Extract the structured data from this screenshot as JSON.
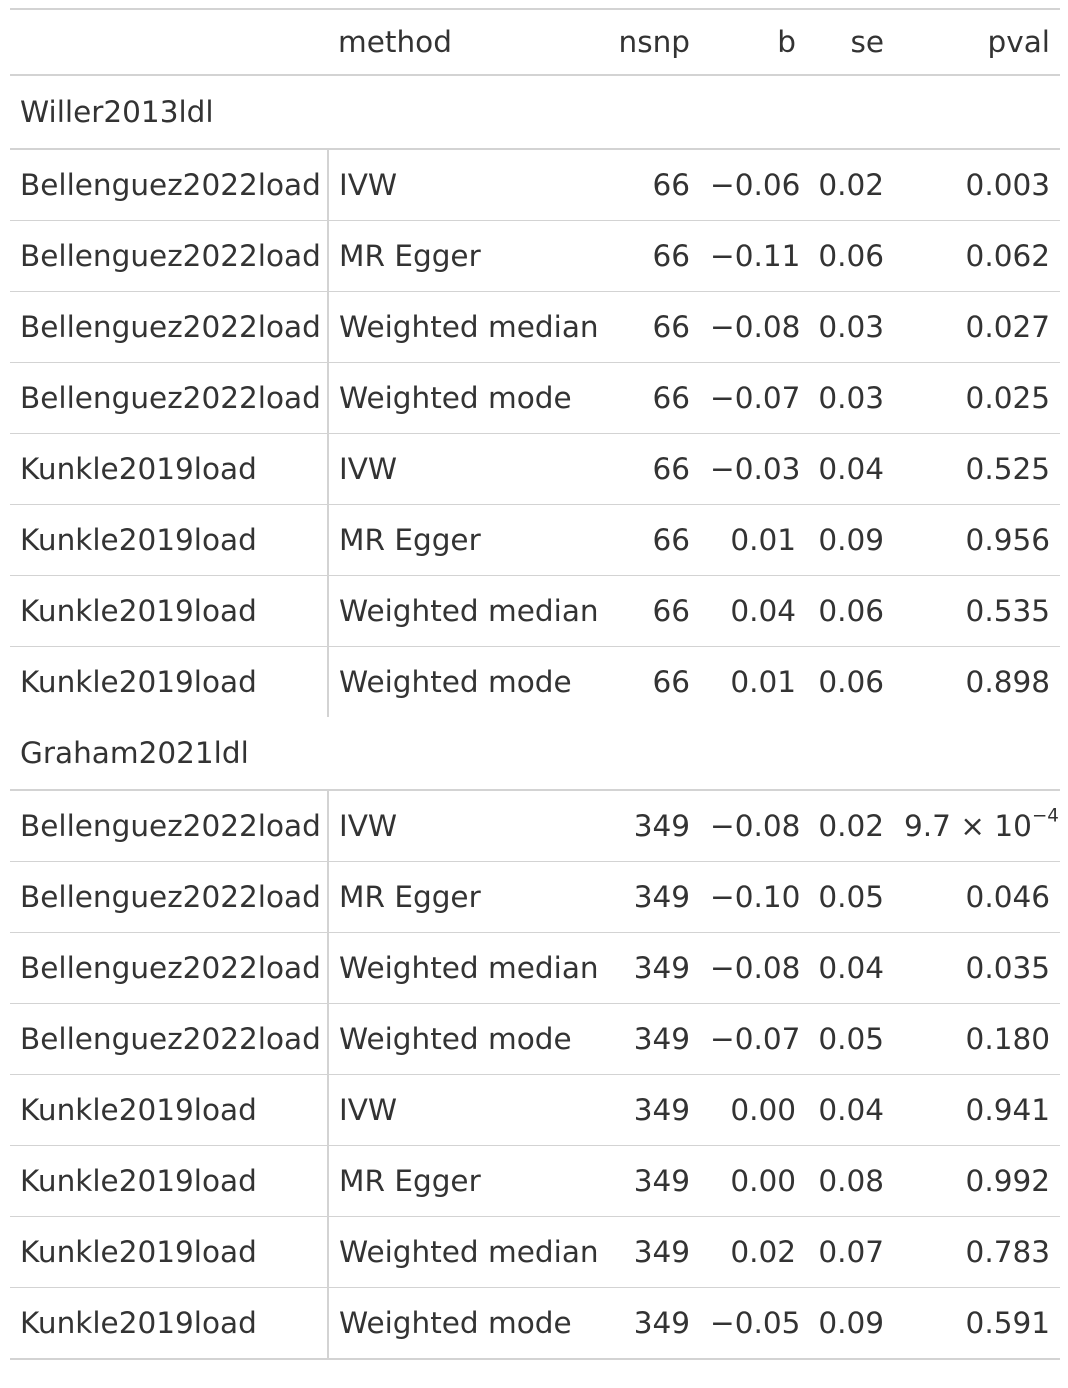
{
  "columns": [
    "",
    "method",
    "nsnp",
    "b",
    "se",
    "pval"
  ],
  "groups": [
    {
      "label": "Willer2013ldl",
      "rows": [
        {
          "stub": "Bellenguez2022load",
          "method": "IVW",
          "nsnp": "66",
          "b": "−0.06",
          "se": "0.02",
          "pval": "0.003"
        },
        {
          "stub": "Bellenguez2022load",
          "method": "MR Egger",
          "nsnp": "66",
          "b": "−0.11",
          "se": "0.06",
          "pval": "0.062"
        },
        {
          "stub": "Bellenguez2022load",
          "method": "Weighted median",
          "nsnp": "66",
          "b": "−0.08",
          "se": "0.03",
          "pval": "0.027"
        },
        {
          "stub": "Bellenguez2022load",
          "method": "Weighted mode",
          "nsnp": "66",
          "b": "−0.07",
          "se": "0.03",
          "pval": "0.025"
        },
        {
          "stub": "Kunkle2019load",
          "method": "IVW",
          "nsnp": "66",
          "b": "−0.03",
          "se": "0.04",
          "pval": "0.525"
        },
        {
          "stub": "Kunkle2019load",
          "method": "MR Egger",
          "nsnp": "66",
          "b": "0.01",
          "se": "0.09",
          "pval": "0.956"
        },
        {
          "stub": "Kunkle2019load",
          "method": "Weighted median",
          "nsnp": "66",
          "b": "0.04",
          "se": "0.06",
          "pval": "0.535"
        },
        {
          "stub": "Kunkle2019load",
          "method": "Weighted mode",
          "nsnp": "66",
          "b": "0.01",
          "se": "0.06",
          "pval": "0.898"
        }
      ]
    },
    {
      "label": "Graham2021ldl",
      "rows": [
        {
          "stub": "Bellenguez2022load",
          "method": "IVW",
          "nsnp": "349",
          "b": "−0.08",
          "se": "0.02",
          "pval": "9.7 × 10",
          "pval_exp": "−4"
        },
        {
          "stub": "Bellenguez2022load",
          "method": "MR Egger",
          "nsnp": "349",
          "b": "−0.10",
          "se": "0.05",
          "pval": "0.046"
        },
        {
          "stub": "Bellenguez2022load",
          "method": "Weighted median",
          "nsnp": "349",
          "b": "−0.08",
          "se": "0.04",
          "pval": "0.035"
        },
        {
          "stub": "Bellenguez2022load",
          "method": "Weighted mode",
          "nsnp": "349",
          "b": "−0.07",
          "se": "0.05",
          "pval": "0.180"
        },
        {
          "stub": "Kunkle2019load",
          "method": "IVW",
          "nsnp": "349",
          "b": "0.00",
          "se": "0.04",
          "pval": "0.941"
        },
        {
          "stub": "Kunkle2019load",
          "method": "MR Egger",
          "nsnp": "349",
          "b": "0.00",
          "se": "0.08",
          "pval": "0.992"
        },
        {
          "stub": "Kunkle2019load",
          "method": "Weighted median",
          "nsnp": "349",
          "b": "0.02",
          "se": "0.07",
          "pval": "0.783"
        },
        {
          "stub": "Kunkle2019load",
          "method": "Weighted mode",
          "nsnp": "349",
          "b": "−0.05",
          "se": "0.09",
          "pval": "0.591"
        }
      ]
    }
  ]
}
